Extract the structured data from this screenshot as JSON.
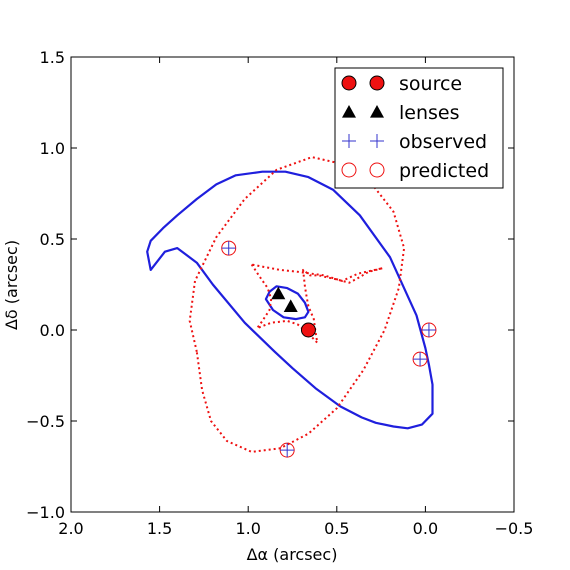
{
  "chart_data": {
    "type": "scatter",
    "xlabel": "Δα (arcsec)",
    "ylabel": "Δδ (arcsec)",
    "xlim": [
      2.0,
      -0.5
    ],
    "ylim": [
      -1.0,
      1.5
    ],
    "x_ticks": [
      {
        "value": 2.0,
        "label": "2.0"
      },
      {
        "value": 1.5,
        "label": "1.5"
      },
      {
        "value": 1.0,
        "label": "1.0"
      },
      {
        "value": 0.5,
        "label": "0.5"
      },
      {
        "value": 0.0,
        "label": "0.0"
      },
      {
        "value": -0.5,
        "label": "−0.5"
      }
    ],
    "y_ticks": [
      {
        "value": -1.0,
        "label": "−1.0"
      },
      {
        "value": -0.5,
        "label": "−0.5"
      },
      {
        "value": 0.0,
        "label": "0.0"
      },
      {
        "value": 0.5,
        "label": "0.5"
      },
      {
        "value": 1.0,
        "label": "1.0"
      },
      {
        "value": 1.5,
        "label": "1.5"
      }
    ],
    "legend_position": "top-right",
    "legend": [
      {
        "label": "source",
        "marker": "circle-filled",
        "color": "#ee1111"
      },
      {
        "label": "lenses",
        "marker": "triangle-filled",
        "color": "#000000"
      },
      {
        "label": "observed",
        "marker": "plus",
        "color": "#3333cc"
      },
      {
        "label": "predicted",
        "marker": "circle-open",
        "color": "#ee1111"
      }
    ],
    "points": {
      "source": [
        {
          "x": 0.66,
          "y": 0.0
        }
      ],
      "lenses": [
        {
          "x": 0.83,
          "y": 0.2
        },
        {
          "x": 0.76,
          "y": 0.13
        }
      ],
      "observed": [
        {
          "x": 1.11,
          "y": 0.45
        },
        {
          "x": 0.78,
          "y": -0.66
        },
        {
          "x": -0.02,
          "y": 0.0
        },
        {
          "x": 0.03,
          "y": -0.16
        }
      ],
      "predicted": [
        {
          "x": 1.11,
          "y": 0.45
        },
        {
          "x": 0.78,
          "y": -0.66
        },
        {
          "x": -0.02,
          "y": 0.0
        },
        {
          "x": 0.03,
          "y": -0.16
        }
      ]
    },
    "curves": [
      {
        "style": "solid",
        "color": "#1f1fdd",
        "closed": true,
        "points": [
          [
            1.29,
            0.37
          ],
          [
            1.2,
            0.25
          ],
          [
            1.02,
            0.04
          ],
          [
            0.85,
            -0.12
          ],
          [
            0.75,
            -0.21
          ],
          [
            0.62,
            -0.32
          ],
          [
            0.48,
            -0.42
          ],
          [
            0.36,
            -0.48
          ],
          [
            0.28,
            -0.51
          ],
          [
            0.18,
            -0.53
          ],
          [
            0.1,
            -0.54
          ],
          [
            0.02,
            -0.52
          ],
          [
            -0.04,
            -0.46
          ],
          [
            -0.04,
            -0.3
          ],
          [
            -0.02,
            -0.19
          ],
          [
            0.0,
            -0.1
          ],
          [
            0.05,
            0.08
          ],
          [
            0.2,
            0.4
          ],
          [
            0.37,
            0.63
          ],
          [
            0.52,
            0.77
          ],
          [
            0.66,
            0.84
          ],
          [
            0.79,
            0.87
          ],
          [
            0.92,
            0.87
          ],
          [
            1.07,
            0.85
          ],
          [
            1.18,
            0.8
          ],
          [
            1.29,
            0.72
          ],
          [
            1.4,
            0.63
          ],
          [
            1.48,
            0.56
          ],
          [
            1.55,
            0.49
          ],
          [
            1.57,
            0.43
          ],
          [
            1.55,
            0.33
          ],
          [
            1.47,
            0.43
          ],
          [
            1.4,
            0.45
          ],
          [
            1.29,
            0.37
          ]
        ]
      },
      {
        "style": "solid",
        "color": "#1f1fdd",
        "closed": true,
        "points": [
          [
            0.9,
            0.17
          ],
          [
            0.88,
            0.21
          ],
          [
            0.84,
            0.24
          ],
          [
            0.78,
            0.23
          ],
          [
            0.72,
            0.2
          ],
          [
            0.68,
            0.15
          ],
          [
            0.66,
            0.1
          ],
          [
            0.68,
            0.07
          ],
          [
            0.73,
            0.06
          ],
          [
            0.8,
            0.07
          ],
          [
            0.86,
            0.11
          ],
          [
            0.9,
            0.17
          ]
        ]
      },
      {
        "style": "dotted",
        "color": "#ee1111",
        "closed": true,
        "points": [
          [
            1.29,
            -0.12
          ],
          [
            1.33,
            0.05
          ],
          [
            1.3,
            0.27
          ],
          [
            1.18,
            0.51
          ],
          [
            1.02,
            0.72
          ],
          [
            0.84,
            0.88
          ],
          [
            0.64,
            0.95
          ],
          [
            0.46,
            0.91
          ],
          [
            0.3,
            0.8
          ],
          [
            0.18,
            0.65
          ],
          [
            0.12,
            0.45
          ],
          [
            0.15,
            0.23
          ],
          [
            0.23,
            0.0
          ],
          [
            0.35,
            -0.22
          ],
          [
            0.5,
            -0.43
          ],
          [
            0.66,
            -0.57
          ],
          [
            0.82,
            -0.65
          ],
          [
            0.98,
            -0.67
          ],
          [
            1.12,
            -0.61
          ],
          [
            1.21,
            -0.5
          ],
          [
            1.26,
            -0.33
          ],
          [
            1.29,
            -0.12
          ]
        ]
      },
      {
        "style": "dotted",
        "color": "#ee1111",
        "closed": true,
        "points": [
          [
            0.98,
            0.36
          ],
          [
            0.94,
            0.3
          ],
          [
            0.89,
            0.23
          ],
          [
            0.87,
            0.17
          ],
          [
            0.88,
            0.11
          ],
          [
            0.92,
            0.05
          ],
          [
            0.95,
            0.01
          ],
          [
            0.87,
            0.04
          ],
          [
            0.78,
            0.05
          ],
          [
            0.72,
            0.03
          ],
          [
            0.66,
            -0.02
          ],
          [
            0.61,
            -0.07
          ],
          [
            0.62,
            -0.01
          ],
          [
            0.63,
            0.06
          ],
          [
            0.66,
            0.13
          ],
          [
            0.67,
            0.18
          ],
          [
            0.68,
            0.24
          ],
          [
            0.69,
            0.33
          ],
          [
            0.65,
            0.3
          ],
          [
            0.6,
            0.3
          ],
          [
            0.56,
            0.29
          ],
          [
            0.51,
            0.28
          ],
          [
            0.43,
            0.26
          ],
          [
            0.39,
            0.28
          ],
          [
            0.32,
            0.32
          ],
          [
            0.24,
            0.34
          ],
          [
            0.38,
            0.31
          ],
          [
            0.47,
            0.27
          ],
          [
            0.57,
            0.3
          ],
          [
            0.72,
            0.32
          ],
          [
            0.82,
            0.33
          ],
          [
            0.93,
            0.35
          ],
          [
            0.98,
            0.36
          ]
        ]
      }
    ]
  }
}
